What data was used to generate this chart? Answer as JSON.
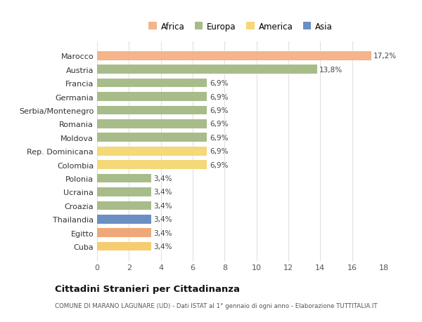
{
  "categories": [
    "Cuba",
    "Egitto",
    "Thailandia",
    "Croazia",
    "Ucraina",
    "Polonia",
    "Colombia",
    "Rep. Dominicana",
    "Moldova",
    "Romania",
    "Serbia/Montenegro",
    "Germania",
    "Francia",
    "Austria",
    "Marocco"
  ],
  "values": [
    3.4,
    3.4,
    3.4,
    3.4,
    3.4,
    3.4,
    6.9,
    6.9,
    6.9,
    6.9,
    6.9,
    6.9,
    6.9,
    13.8,
    17.2
  ],
  "bar_colors": [
    "#f5cc6e",
    "#f0a878",
    "#6b8fc2",
    "#a8bc8a",
    "#a8bc8a",
    "#a8bc8a",
    "#f5d878",
    "#f5d878",
    "#a8bc8a",
    "#a8bc8a",
    "#a8bc8a",
    "#a8bc8a",
    "#a8bc8a",
    "#a8bc8a",
    "#f5b48a"
  ],
  "labels": [
    "3,4%",
    "3,4%",
    "3,4%",
    "3,4%",
    "3,4%",
    "3,4%",
    "6,9%",
    "6,9%",
    "6,9%",
    "6,9%",
    "6,9%",
    "6,9%",
    "6,9%",
    "13,8%",
    "17,2%"
  ],
  "legend": [
    {
      "label": "Africa",
      "color": "#f5b48a"
    },
    {
      "label": "Europa",
      "color": "#a8bc8a"
    },
    {
      "label": "America",
      "color": "#f5d878"
    },
    {
      "label": "Asia",
      "color": "#6b8fc2"
    }
  ],
  "title": "Cittadini Stranieri per Cittadinanza",
  "subtitle": "COMUNE DI MARANO LAGUNARE (UD) - Dati ISTAT al 1° gennaio di ogni anno - Elaborazione TUTTITALIA.IT",
  "xlim": [
    0,
    18
  ],
  "xticks": [
    0,
    2,
    4,
    6,
    8,
    10,
    12,
    14,
    16,
    18
  ],
  "background_color": "#ffffff",
  "grid_color": "#e0e0e0"
}
